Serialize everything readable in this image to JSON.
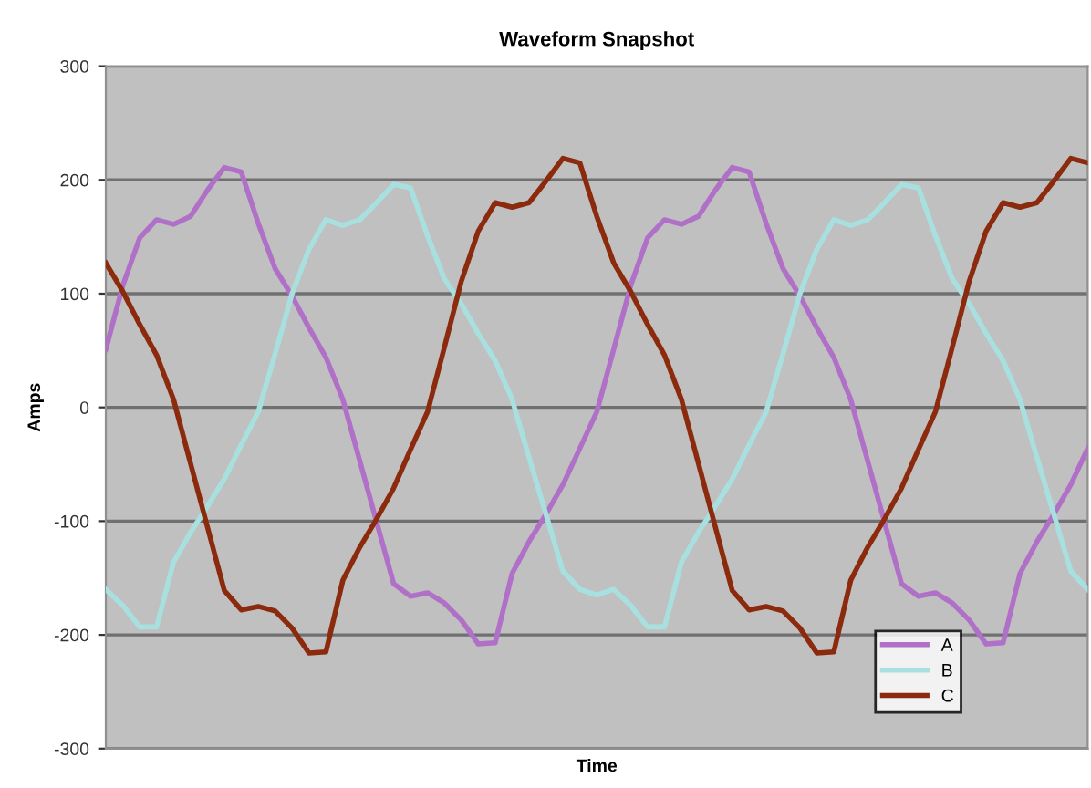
{
  "chart_data": {
    "type": "line",
    "title": "Waveform Snapshot",
    "xlabel": "Time",
    "ylabel": "Amps",
    "categories": [
      null,
      null,
      null,
      null,
      null,
      null,
      null,
      null,
      null,
      null,
      null,
      null,
      null,
      null,
      null,
      null,
      null,
      null,
      null,
      null,
      null,
      null,
      null,
      null,
      null,
      null,
      null,
      null,
      null,
      null,
      null,
      null,
      null,
      null,
      null,
      null,
      null,
      null,
      null,
      null,
      null,
      null,
      null,
      null,
      null,
      null,
      null,
      null,
      null,
      null,
      null,
      null,
      null,
      null,
      null,
      null,
      null,
      null,
      null
    ],
    "series": [
      {
        "name": "A",
        "color": "#b070c8",
        "values": [
          51,
          107,
          149,
          165,
          161,
          168,
          191,
          211,
          207,
          162,
          122,
          98,
          70,
          44,
          7,
          -47,
          -101,
          -155,
          -166,
          -163,
          -172,
          -187,
          -208,
          -207,
          -146,
          -118,
          -94,
          -68,
          -36,
          -4,
          51,
          107,
          149,
          165,
          161,
          168,
          191,
          211,
          207,
          162,
          122,
          98,
          70,
          44,
          7,
          -47,
          -101,
          -155,
          -166,
          -163,
          -172,
          -187,
          -208,
          -207,
          -146,
          -118,
          -94,
          -68,
          -36
        ]
      },
      {
        "name": "B",
        "color": "#a8e0e0",
        "values": [
          -160,
          -174,
          -193,
          -193,
          -136,
          -110,
          -87,
          -63,
          -33,
          -4,
          47,
          100,
          139,
          165,
          160,
          165,
          180,
          196,
          193,
          151,
          113,
          91,
          65,
          41,
          7,
          -44,
          -94,
          -144,
          -160,
          -165,
          -160,
          -174,
          -193,
          -193,
          -136,
          -110,
          -87,
          -63,
          -33,
          -4,
          47,
          100,
          139,
          165,
          160,
          165,
          180,
          196,
          193,
          151,
          113,
          91,
          65,
          41,
          7,
          -44,
          -94,
          -144,
          -160
        ]
      },
      {
        "name": "C",
        "color": "#8b2a0c",
        "values": [
          127,
          102,
          73,
          46,
          7,
          -49,
          -105,
          -161,
          -178,
          -175,
          -179,
          -194,
          -216,
          -215,
          -152,
          -123,
          -98,
          -71,
          -37,
          -4,
          53,
          111,
          155,
          180,
          176,
          180,
          199,
          219,
          215,
          168,
          127,
          102,
          73,
          46,
          7,
          -49,
          -105,
          -161,
          -178,
          -175,
          -179,
          -194,
          -216,
          -215,
          -152,
          -123,
          -98,
          -71,
          -37,
          -4,
          53,
          111,
          155,
          180,
          176,
          180,
          199,
          219,
          215
        ]
      }
    ],
    "ylim": [
      -300,
      300
    ],
    "yticks": [
      -300,
      -200,
      -100,
      0,
      100,
      200,
      300
    ],
    "grid": "y",
    "legend": "bottom right",
    "tick_labels": "y",
    "marker": "none",
    "line_style": "solid"
  }
}
